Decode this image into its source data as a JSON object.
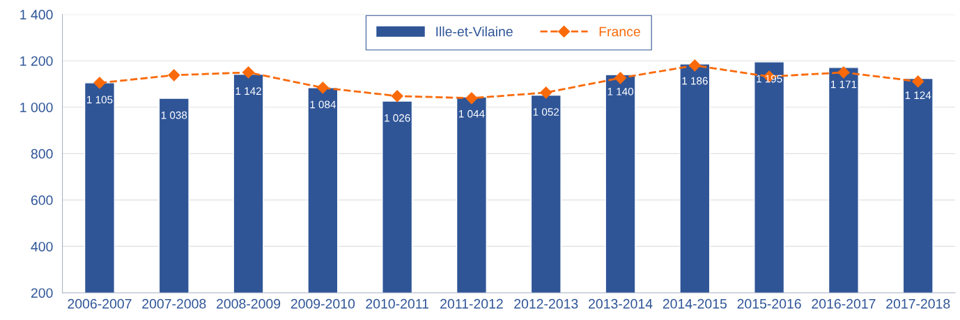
{
  "chart_data": {
    "type": "bar",
    "categories": [
      "2006-2007",
      "2007-2008",
      "2008-2009",
      "2009-2010",
      "2010-2011",
      "2011-2012",
      "2012-2013",
      "2013-2014",
      "2014-2015",
      "2015-2016",
      "2016-2017",
      "2017-2018"
    ],
    "series": [
      {
        "name": "Ille-et-Vilaine",
        "color": "#2f5597",
        "values": [
          1105,
          1038,
          1142,
          1084,
          1026,
          1044,
          1052,
          1140,
          1186,
          1195,
          1171,
          1124
        ],
        "value_labels": [
          "1 105",
          "1 038",
          "1 142",
          "1 084",
          "1 026",
          "1 044",
          "1 052",
          "1 140",
          "1 186",
          "1 195",
          "1 171",
          "1 124"
        ]
      },
      {
        "name": "France",
        "type": "line",
        "color": "#fa6a0a",
        "marker": "diamond",
        "line_style": "dashed",
        "values": [
          1105,
          1138,
          1150,
          1084,
          1048,
          1039,
          1063,
          1126,
          1180,
          1132,
          1150,
          1111
        ]
      }
    ],
    "ylim": [
      200,
      1400
    ],
    "yticks": [
      {
        "value": 200,
        "label": "200"
      },
      {
        "value": 400,
        "label": "400"
      },
      {
        "value": 600,
        "label": "600"
      },
      {
        "value": 800,
        "label": "800"
      },
      {
        "value": 1000,
        "label": "1 000"
      },
      {
        "value": 1200,
        "label": "1 200"
      },
      {
        "value": 1400,
        "label": "1 400"
      }
    ],
    "grid": "y",
    "legend": "top"
  }
}
